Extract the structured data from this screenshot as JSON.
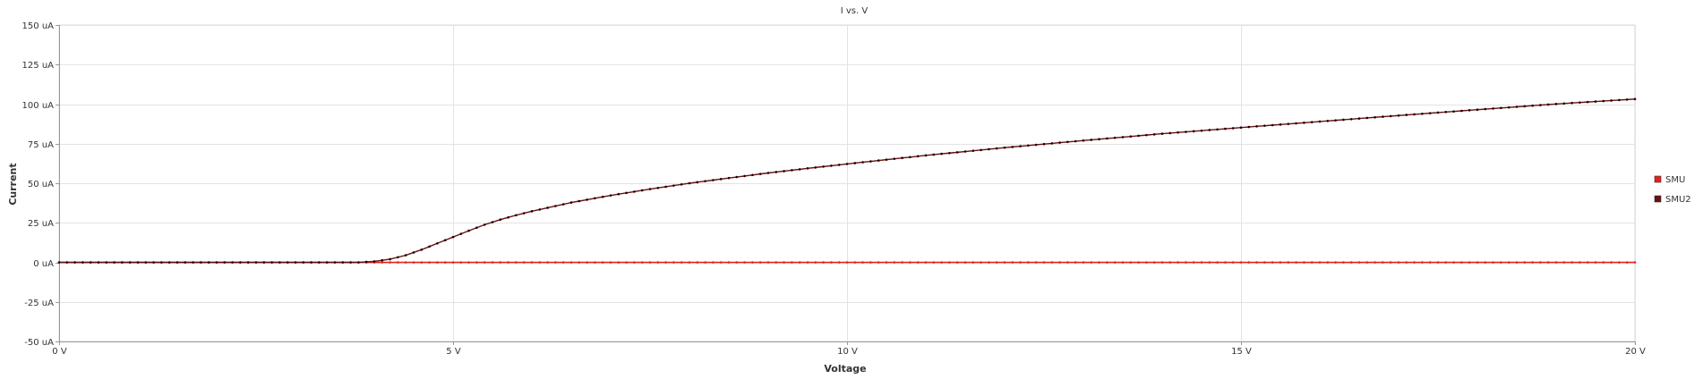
{
  "chart_data": {
    "type": "line",
    "title": "I vs. V",
    "xlabel": "Voltage",
    "ylabel": "Current",
    "xlim": [
      0,
      20
    ],
    "ylim": [
      -50,
      150
    ],
    "x_ticks": [
      0,
      5,
      10,
      15,
      20
    ],
    "x_tick_labels": [
      "0 V",
      "5 V",
      "10 V",
      "15 V",
      "20 V"
    ],
    "y_ticks": [
      -50,
      -25,
      0,
      25,
      50,
      75,
      100,
      125,
      150
    ],
    "y_tick_labels": [
      "-50 uA",
      "-25 uA",
      "0 uA",
      "25 uA",
      "50 uA",
      "75 uA",
      "100 uA",
      "125 uA",
      "150 uA"
    ],
    "grid": true,
    "legend": "right",
    "x_sampling": {
      "start": 0,
      "stop": 20,
      "step": 0.1
    },
    "series": [
      {
        "name": "SMU",
        "color": "#e8201c",
        "marker_color": "#e8201c",
        "values": [
          [
            0,
            0
          ],
          [
            20,
            0
          ]
        ]
      },
      {
        "name": "SMU2",
        "color": "#6b0f0f",
        "marker_color": "#1a0000",
        "values": [
          [
            0,
            0
          ],
          [
            3.8,
            0
          ],
          [
            4.0,
            0.6
          ],
          [
            4.2,
            2.0
          ],
          [
            4.4,
            4.5
          ],
          [
            4.6,
            8.0
          ],
          [
            4.8,
            12.0
          ],
          [
            5.0,
            16.0
          ],
          [
            5.2,
            20.0
          ],
          [
            5.4,
            23.8
          ],
          [
            5.6,
            27.0
          ],
          [
            5.8,
            29.8
          ],
          [
            6.0,
            32.3
          ],
          [
            6.5,
            37.8
          ],
          [
            7.0,
            42.3
          ],
          [
            7.5,
            46.3
          ],
          [
            8.0,
            50.0
          ],
          [
            8.5,
            53.3
          ],
          [
            9.0,
            56.5
          ],
          [
            9.5,
            59.4
          ],
          [
            10.0,
            62.2
          ],
          [
            11.0,
            67.6
          ],
          [
            12.0,
            72.5
          ],
          [
            13.0,
            77.0
          ],
          [
            14.0,
            81.3
          ],
          [
            15.0,
            85.2
          ],
          [
            16.0,
            89.0
          ],
          [
            17.0,
            92.8
          ],
          [
            18.0,
            96.5
          ],
          [
            19.0,
            100.1
          ],
          [
            20.0,
            103.2
          ]
        ]
      }
    ]
  }
}
